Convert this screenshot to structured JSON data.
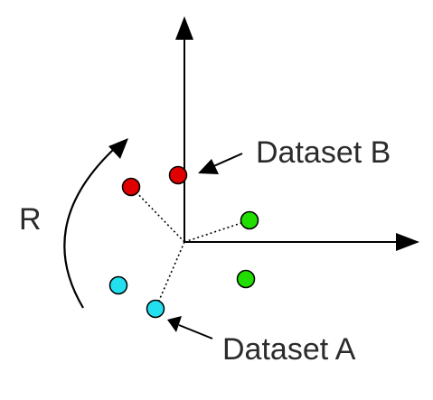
{
  "labels": {
    "rotation": "R",
    "dataset_b": "Dataset B",
    "dataset_a": "Dataset A"
  },
  "colors": {
    "axis": "#000000",
    "red_point": "#e00000",
    "green_point": "#22dd00",
    "cyan_point": "#22e0f0",
    "connector": "#000000",
    "text": "#2b2b2b"
  },
  "points": [
    {
      "group": "red",
      "name": "point-red-upper"
    },
    {
      "group": "red",
      "name": "point-red-left"
    },
    {
      "group": "green",
      "name": "point-green-upper"
    },
    {
      "group": "green",
      "name": "point-green-lower"
    },
    {
      "group": "cyan",
      "name": "point-cyan-left"
    },
    {
      "group": "cyan",
      "name": "point-cyan-lower"
    }
  ]
}
